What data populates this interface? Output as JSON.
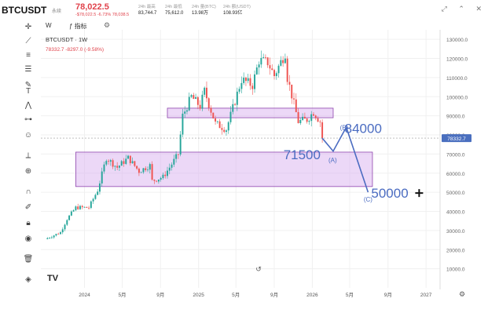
{
  "header": {
    "symbol": "BTCUSDT",
    "fav_label": "永续",
    "price": "78,022.5",
    "change_line": "-$78,022.5  -6.73%  78,038.5",
    "stats": [
      {
        "label": "24h 最高",
        "value": "83,744.7"
      },
      {
        "label": "24h 最低",
        "value": "75,612.0"
      },
      {
        "label": "24h 量(BTC)",
        "value": "13.98万"
      },
      {
        "label": "24h 额(USDT)",
        "value": "108.93亿"
      }
    ]
  },
  "window_controls": [
    "⤢",
    "⌃",
    "✕"
  ],
  "toolbar_row": {
    "interval": "W",
    "indicators": "指标"
  },
  "legend": {
    "title": "BTCUSDT · 1W",
    "values": "78332.7  -8297.0 (-9.58%)"
  },
  "current_price_label": "78332.7",
  "chart_data": {
    "type": "candlestick",
    "title": "BTCUSDT · 1W",
    "y_range": [
      0,
      135000
    ],
    "y_ticks": [
      10000,
      20000,
      30000,
      40000,
      50000,
      60000,
      70000,
      80000,
      90000,
      100000,
      110000,
      120000,
      130000
    ],
    "y_tick_labels": [
      "10000.0",
      "20000.0",
      "30000.0",
      "40000.0",
      "50000.0",
      "60000.0",
      "70000.0",
      "80000.0",
      "90000.0",
      "100000.0",
      "110000.0",
      "120000.0",
      "130000.0"
    ],
    "x_range": [
      "2023-08-14",
      "2027-02-15"
    ],
    "x_ticks": [
      {
        "date": "2024-01-01",
        "label": "2024"
      },
      {
        "date": "2024-05-01",
        "label": "5月"
      },
      {
        "date": "2024-09-01",
        "label": "9月"
      },
      {
        "date": "2025-01-01",
        "label": "2025"
      },
      {
        "date": "2025-05-01",
        "label": "5月"
      },
      {
        "date": "2025-09-01",
        "label": "9月"
      },
      {
        "date": "2026-01-01",
        "label": "2026"
      },
      {
        "date": "2026-05-01",
        "label": "5月"
      },
      {
        "date": "2026-09-01",
        "label": "9月"
      },
      {
        "date": "2027-01-01",
        "label": "2027"
      }
    ],
    "first_candle_date": "2023-09-04",
    "candle_interval": "1W",
    "close_path": [
      [
        "2023-09-04",
        26000
      ],
      [
        "2023-10-16",
        29000
      ],
      [
        "2023-11-06",
        36000
      ],
      [
        "2023-12-04",
        42000
      ],
      [
        "2024-01-15",
        42000
      ],
      [
        "2024-02-12",
        51000
      ],
      [
        "2024-03-11",
        68000
      ],
      [
        "2024-04-15",
        63000
      ],
      [
        "2024-05-20",
        68000
      ],
      [
        "2024-06-24",
        61000
      ],
      [
        "2024-07-29",
        64000
      ],
      [
        "2024-08-05",
        56000
      ],
      [
        "2024-09-09",
        58000
      ],
      [
        "2024-09-30",
        63000
      ],
      [
        "2024-10-28",
        70000
      ],
      [
        "2024-11-11",
        90000
      ],
      [
        "2024-12-09",
        100000
      ],
      [
        "2025-01-06",
        95000
      ],
      [
        "2025-01-20",
        103000
      ],
      [
        "2025-02-24",
        86000
      ],
      [
        "2025-03-31",
        83000
      ],
      [
        "2025-04-21",
        94000
      ],
      [
        "2025-05-19",
        109000
      ],
      [
        "2025-06-23",
        106000
      ],
      [
        "2025-07-14",
        119000
      ],
      [
        "2025-08-11",
        118000
      ],
      [
        "2025-09-01",
        111000
      ],
      [
        "2025-10-06",
        123000
      ],
      [
        "2025-10-13",
        110000
      ],
      [
        "2025-11-17",
        87000
      ],
      [
        "2025-12-15",
        88000
      ],
      [
        "2026-01-05",
        92000
      ],
      [
        "2026-01-26",
        87000
      ],
      [
        "2026-02-02",
        78300
      ]
    ],
    "resistance_zone": {
      "from": "2024-09-23",
      "to": "2026-03-09",
      "low": 89000,
      "high": 94000
    },
    "support_zone": {
      "from": "2023-12-04",
      "to": "2026-07-13",
      "low": 53000,
      "high": 71000
    },
    "projection": {
      "points": [
        [
          "2026-02-02",
          78300
        ],
        [
          "2026-03-09",
          71500
        ],
        [
          "2026-04-20",
          84000
        ],
        [
          "2026-06-29",
          50000
        ]
      ],
      "labels": [
        "(A)",
        "(B)",
        "(C)"
      ],
      "targets": [
        "71500",
        "84000",
        "50000"
      ]
    },
    "current_price": 78332.7
  },
  "colors": {
    "up": "#26a69a",
    "down": "#ef5350",
    "zone": "#dcb8f0",
    "zone_border": "#8e44ad",
    "projection": "#4b6cc1"
  }
}
